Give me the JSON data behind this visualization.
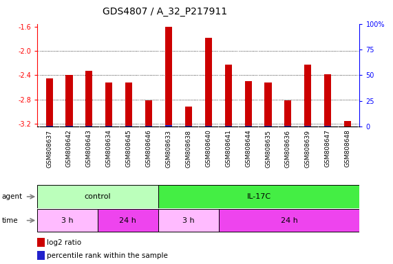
{
  "title": "GDS4807 / A_32_P217911",
  "samples": [
    "GSM808637",
    "GSM808642",
    "GSM808643",
    "GSM808634",
    "GSM808645",
    "GSM808646",
    "GSM808633",
    "GSM808638",
    "GSM808640",
    "GSM808641",
    "GSM808644",
    "GSM808635",
    "GSM808636",
    "GSM808639",
    "GSM808647",
    "GSM808648"
  ],
  "log2_ratio": [
    -2.45,
    -2.4,
    -2.33,
    -2.52,
    -2.52,
    -2.82,
    -1.6,
    -2.92,
    -1.78,
    -2.22,
    -2.5,
    -2.52,
    -2.82,
    -2.22,
    -2.38,
    -3.15
  ],
  "percentile": [
    5,
    7,
    8,
    6,
    6,
    7,
    11,
    8,
    10,
    8,
    8,
    9,
    8,
    8,
    9,
    3
  ],
  "ylim_left": [
    -3.25,
    -1.55
  ],
  "ylim_right": [
    0,
    100
  ],
  "yticks_left": [
    -3.2,
    -2.8,
    -2.4,
    -2.0,
    -1.6
  ],
  "yticks_right": [
    0,
    25,
    50,
    75,
    100
  ],
  "bar_color": "#cc0000",
  "percentile_color": "#2222cc",
  "agent_groups": [
    {
      "label": "control",
      "start": 0,
      "end": 6,
      "color": "#bbffbb"
    },
    {
      "label": "IL-17C",
      "start": 6,
      "end": 16,
      "color": "#44ee44"
    }
  ],
  "time_groups": [
    {
      "label": "3 h",
      "start": 0,
      "end": 3,
      "color": "#ffbbff"
    },
    {
      "label": "24 h",
      "start": 3,
      "end": 6,
      "color": "#ee44ee"
    },
    {
      "label": "3 h",
      "start": 6,
      "end": 9,
      "color": "#ffbbff"
    },
    {
      "label": "24 h",
      "start": 9,
      "end": 16,
      "color": "#ee44ee"
    }
  ],
  "title_fontsize": 10,
  "tick_label_fontsize": 7,
  "sample_label_fontsize": 6.5,
  "background_color": "#ffffff",
  "label_row_bg": "#cccccc"
}
